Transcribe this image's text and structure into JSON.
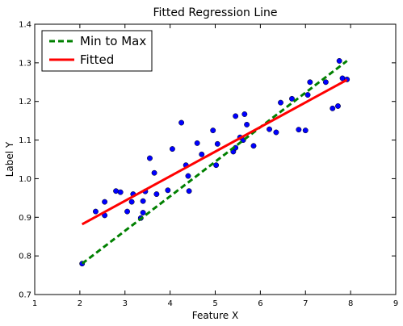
{
  "chart_data": {
    "type": "scatter",
    "title": "Fitted Regression Line",
    "xlabel": "Feature X",
    "ylabel": "Label Y",
    "xlim": [
      1,
      9
    ],
    "ylim": [
      0.7,
      1.4
    ],
    "xticks": [
      "1",
      "2",
      "3",
      "4",
      "5",
      "6",
      "7",
      "8",
      "9"
    ],
    "yticks": [
      "0.7",
      "0.8",
      "0.9",
      "1.0",
      "1.1",
      "1.2",
      "1.3",
      "1.4"
    ],
    "legend_position": "top-left",
    "grid": false,
    "scatter": {
      "color": "#0000ff",
      "points": [
        [
          2.05,
          0.78
        ],
        [
          2.35,
          0.915
        ],
        [
          2.55,
          0.905
        ],
        [
          2.55,
          0.94
        ],
        [
          2.8,
          0.968
        ],
        [
          2.9,
          0.965
        ],
        [
          3.05,
          0.915
        ],
        [
          3.15,
          0.94
        ],
        [
          3.18,
          0.96
        ],
        [
          3.35,
          0.898
        ],
        [
          3.4,
          0.912
        ],
        [
          3.4,
          0.942
        ],
        [
          3.45,
          0.967
        ],
        [
          3.55,
          1.053
        ],
        [
          3.65,
          1.015
        ],
        [
          3.7,
          0.96
        ],
        [
          3.95,
          0.97
        ],
        [
          4.05,
          1.077
        ],
        [
          4.25,
          1.145
        ],
        [
          4.35,
          1.035
        ],
        [
          4.4,
          1.007
        ],
        [
          4.42,
          0.968
        ],
        [
          4.6,
          1.092
        ],
        [
          4.7,
          1.063
        ],
        [
          4.95,
          1.125
        ],
        [
          5.02,
          1.035
        ],
        [
          5.05,
          1.09
        ],
        [
          5.4,
          1.07
        ],
        [
          5.45,
          1.08
        ],
        [
          5.45,
          1.162
        ],
        [
          5.55,
          1.107
        ],
        [
          5.62,
          1.1
        ],
        [
          5.65,
          1.167
        ],
        [
          5.7,
          1.14
        ],
        [
          5.85,
          1.085
        ],
        [
          6.2,
          1.128
        ],
        [
          6.35,
          1.12
        ],
        [
          6.45,
          1.197
        ],
        [
          6.7,
          1.207
        ],
        [
          6.85,
          1.127
        ],
        [
          7.0,
          1.125
        ],
        [
          7.05,
          1.217
        ],
        [
          7.1,
          1.25
        ],
        [
          7.45,
          1.25
        ],
        [
          7.6,
          1.182
        ],
        [
          7.72,
          1.188
        ],
        [
          7.75,
          1.305
        ],
        [
          7.82,
          1.26
        ],
        [
          7.92,
          1.257
        ]
      ]
    },
    "series": [
      {
        "name": "Min to Max",
        "style": "dashed",
        "color": "#008000",
        "x": [
          2.05,
          7.92
        ],
        "y": [
          0.78,
          1.305
        ]
      },
      {
        "name": "Fitted",
        "style": "solid",
        "color": "#ff0000",
        "x": [
          2.05,
          7.92
        ],
        "y": [
          0.882,
          1.256
        ]
      }
    ]
  }
}
